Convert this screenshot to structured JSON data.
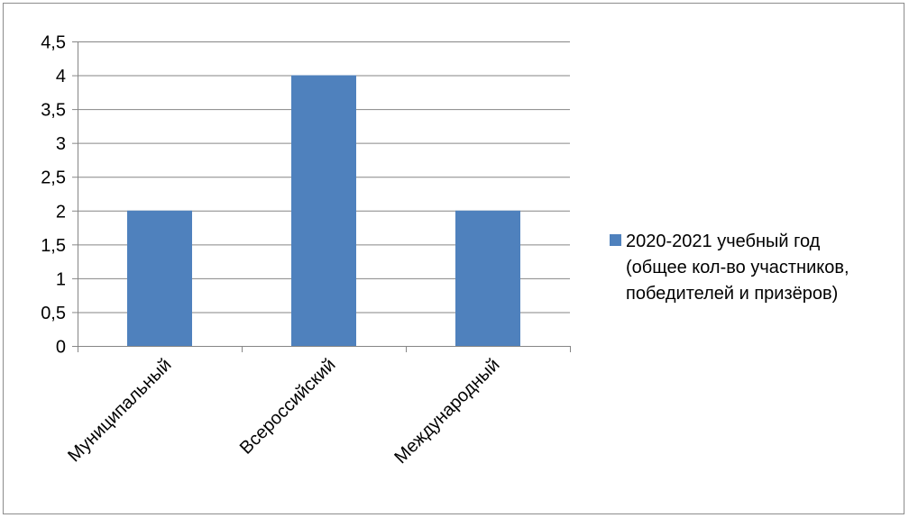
{
  "chart_data": {
    "type": "bar",
    "categories": [
      "Муниципальный",
      "Всероссийский",
      "Международный"
    ],
    "series": [
      {
        "name": "2020-2021 учебный год (общее кол-во участников, победителей и призёров)",
        "legend_lines": [
          "2020-2021 учебный год",
          "(общее кол-во участников,",
          "победителей и призёров)"
        ],
        "values": [
          2,
          4,
          2
        ],
        "color": "#4f81bd"
      }
    ],
    "title": "",
    "xlabel": "",
    "ylabel": "",
    "ylim": [
      0,
      4.5
    ],
    "yticks": [
      {
        "value": 0,
        "label": "0"
      },
      {
        "value": 0.5,
        "label": "0,5"
      },
      {
        "value": 1,
        "label": "1"
      },
      {
        "value": 1.5,
        "label": "1,5"
      },
      {
        "value": 2,
        "label": "2"
      },
      {
        "value": 2.5,
        "label": "2,5"
      },
      {
        "value": 3,
        "label": "3"
      },
      {
        "value": 3.5,
        "label": "3,5"
      },
      {
        "value": 4,
        "label": "4"
      },
      {
        "value": 4.5,
        "label": "4,5"
      }
    ],
    "grid": true,
    "legend_position": "right",
    "colors": {
      "bar": "#4f81bd",
      "grid": "#868686",
      "axis": "#868686",
      "frame": "#8c8c8c"
    }
  }
}
